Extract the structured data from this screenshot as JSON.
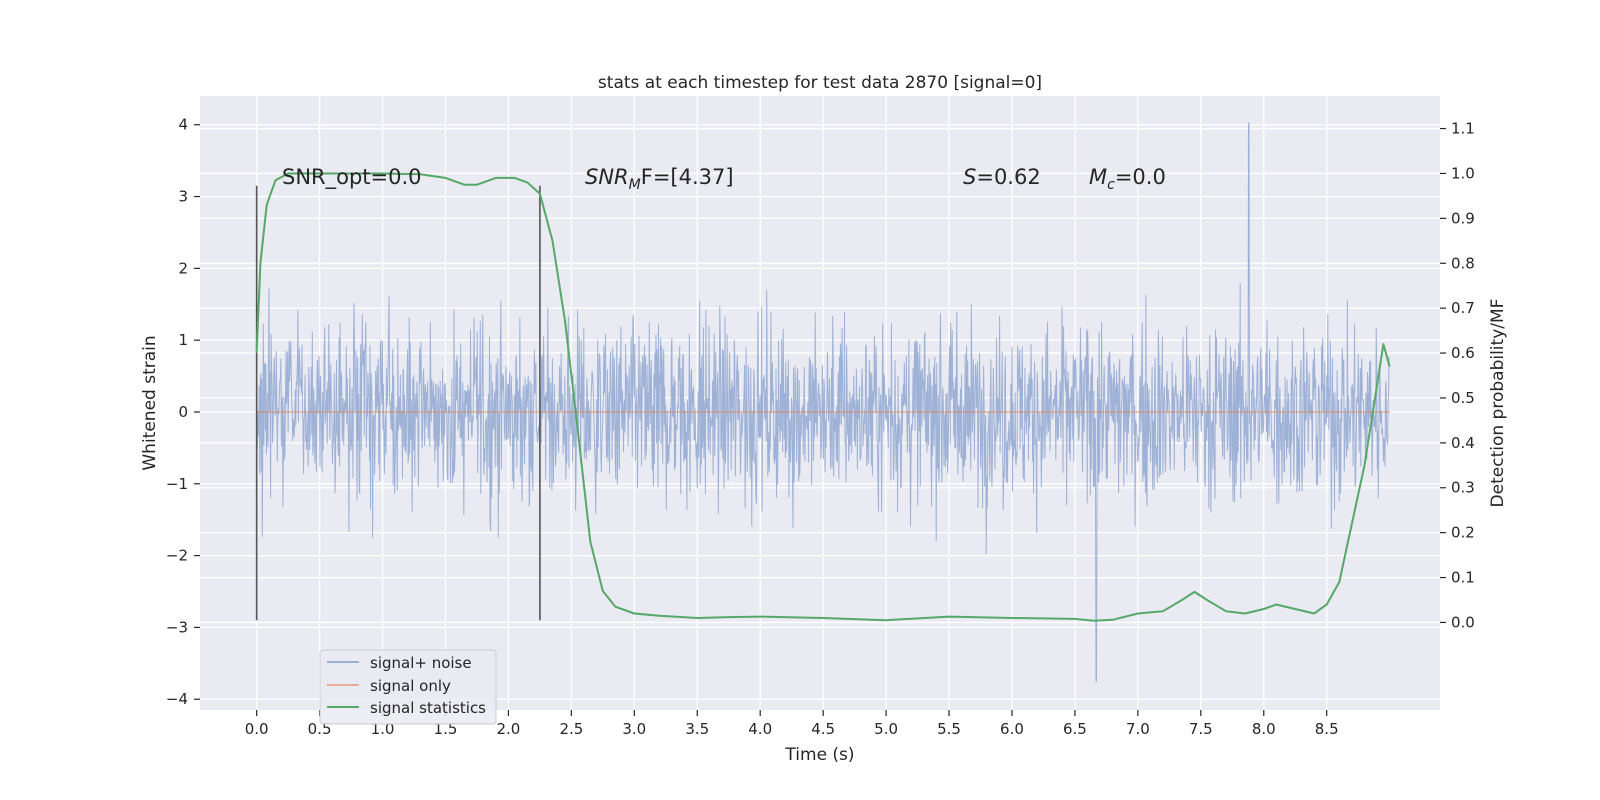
{
  "chart_data": {
    "type": "line",
    "title": "stats at each timestep for test data 2870 [signal=0]",
    "xlabel": "Time (s)",
    "ylabel": "Whitened strain",
    "y2label": "Detection probability/MF",
    "xlim": [
      -0.45,
      9.4
    ],
    "ylim": [
      -4.15,
      4.4
    ],
    "y2lim": [
      -0.195,
      1.1725
    ],
    "x_ticks": [
      "0.0",
      "0.5",
      "1.0",
      "1.5",
      "2.0",
      "2.5",
      "3.0",
      "3.5",
      "4.0",
      "4.5",
      "5.0",
      "5.5",
      "6.0",
      "6.5",
      "7.0",
      "7.5",
      "8.0",
      "8.5"
    ],
    "x_tick_values": [
      0,
      0.5,
      1,
      1.5,
      2,
      2.5,
      3,
      3.5,
      4,
      4.5,
      5,
      5.5,
      6,
      6.5,
      7,
      7.5,
      8,
      8.5
    ],
    "y_ticks": [
      "−4",
      "−3",
      "−2",
      "−1",
      "0",
      "1",
      "2",
      "3",
      "4"
    ],
    "y_tick_values": [
      -4,
      -3,
      -2,
      -1,
      0,
      1,
      2,
      3,
      4
    ],
    "y2_ticks": [
      "0.0",
      "0.1",
      "0.2",
      "0.3",
      "0.4",
      "0.5",
      "0.6",
      "0.7",
      "0.8",
      "0.9",
      "1.0",
      "1.1"
    ],
    "y2_tick_values": [
      0,
      0.1,
      0.2,
      0.3,
      0.4,
      0.5,
      0.6,
      0.7,
      0.8,
      0.9,
      1.0,
      1.1
    ],
    "grid": true,
    "legend_position": "bottom-left",
    "series": [
      {
        "name": "signal+ noise",
        "color": "#9aaed4",
        "x_range": [
          0,
          9.0
        ],
        "typical_amplitude": 1.35,
        "max_value": 4.02,
        "max_at": 7.88,
        "min_value": -3.75,
        "min_at": 6.67
      },
      {
        "name": "signal only",
        "color": "#dd8452",
        "x": [
          0,
          9.0
        ],
        "y": [
          0,
          0
        ]
      },
      {
        "name": "signal statistics",
        "color": "#55a868",
        "axis": "right",
        "x": [
          0,
          0.03,
          0.08,
          0.15,
          0.25,
          0.5,
          1.0,
          1.3,
          1.5,
          1.65,
          1.75,
          1.9,
          2.05,
          2.15,
          2.25,
          2.35,
          2.45,
          2.55,
          2.65,
          2.75,
          2.85,
          3.0,
          3.2,
          3.5,
          3.75,
          4.0,
          4.5,
          5.0,
          5.5,
          6.0,
          6.5,
          6.65,
          6.8,
          7.0,
          7.2,
          7.35,
          7.45,
          7.55,
          7.7,
          7.85,
          8.0,
          8.1,
          8.25,
          8.4,
          8.5,
          8.6,
          8.8,
          8.95,
          9.0
        ],
        "y": [
          0.6,
          0.8,
          0.93,
          0.985,
          1.0,
          1.0,
          1.0,
          0.998,
          0.99,
          0.975,
          0.975,
          0.99,
          0.99,
          0.98,
          0.955,
          0.85,
          0.67,
          0.43,
          0.18,
          0.07,
          0.035,
          0.02,
          0.015,
          0.01,
          0.012,
          0.013,
          0.01,
          0.005,
          0.013,
          0.01,
          0.008,
          0.004,
          0.006,
          0.02,
          0.025,
          0.05,
          0.068,
          0.05,
          0.025,
          0.02,
          0.03,
          0.04,
          0.03,
          0.02,
          0.04,
          0.09,
          0.35,
          0.62,
          0.57
        ]
      }
    ],
    "vertical_markers": [
      0.0,
      2.25
    ],
    "vertical_marker_range": [
      -2.9,
      3.15
    ]
  },
  "annotations": {
    "snr_opt": "SNR_opt=0.0",
    "snr_mf_base": "SNR",
    "snr_mf_sub": "M",
    "snr_mf_rest": "F=[4.37]",
    "s_sym": "S",
    "s_val": "=0.62",
    "mc_sym": "M",
    "mc_sub": "c",
    "mc_val": "=0.0"
  },
  "legend": {
    "items": [
      "signal+ noise",
      "signal only",
      "signal statistics"
    ]
  }
}
